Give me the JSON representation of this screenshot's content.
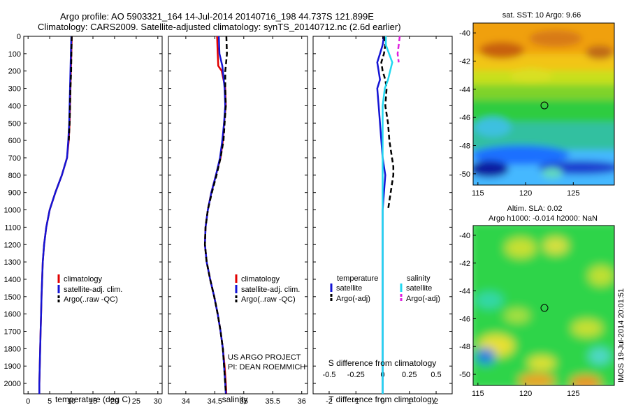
{
  "header": {
    "title_line1": "Argo profile: AO 5903321_164 14-Jul-2014 20140716_198 44.737S 121.899E",
    "title_line2": "Climatology: CARS2009. Satellite-adjusted climatology: synTS_20140712.nc (2.6d earlier)"
  },
  "colors": {
    "climatology": "#e00000",
    "satellite": "#1414d4",
    "argo": "#000000",
    "satellite_salinity": "#22d8f0",
    "argo_salinity": "#e020e0"
  },
  "footer": {
    "project": "US ARGO PROJECT",
    "pi": "PI: DEAN ROEMMICH",
    "stamp": "IMOS 19-Jul-2014 20:01:51"
  },
  "chart_data": [
    {
      "id": "temperature",
      "type": "line",
      "xlabel": "temperature (deg C)",
      "ylabel": "",
      "xlim": [
        -1,
        31
      ],
      "ylim": [
        2060,
        0
      ],
      "y_reversed": true,
      "xticks": [
        0,
        5,
        10,
        15,
        20,
        25,
        30
      ],
      "yticks": [
        0,
        100,
        200,
        300,
        400,
        500,
        600,
        700,
        800,
        900,
        1000,
        1100,
        1200,
        1300,
        1400,
        1500,
        1600,
        1700,
        1800,
        1900,
        2000
      ],
      "y": [
        0,
        100,
        200,
        300,
        400,
        500,
        600,
        700,
        800,
        900,
        1000,
        1100,
        1200,
        1300,
        1400,
        1500,
        1600,
        1700,
        1800,
        1900,
        2000,
        2060
      ],
      "series": [
        {
          "name": "climatology",
          "color_key": "climatology",
          "dash": false,
          "values": [
            10.1,
            10.0,
            9.9,
            9.8,
            9.7,
            9.6,
            9.4,
            9.0,
            7.8,
            6.3,
            5.0,
            4.2,
            3.7,
            3.4,
            3.25,
            3.1,
            3.0,
            2.9,
            2.8,
            2.7,
            2.6,
            2.6
          ]
        },
        {
          "name": "satellite-adj. clim.",
          "color_key": "satellite",
          "dash": false,
          "values": [
            10.0,
            9.9,
            9.8,
            9.7,
            9.6,
            9.5,
            9.3,
            9.0,
            7.8,
            6.3,
            5.0,
            4.2,
            3.7,
            3.4,
            3.25,
            3.1,
            3.0,
            2.9,
            2.8,
            2.7,
            2.6,
            2.6
          ]
        },
        {
          "name": "Argo(..raw -QC)",
          "color_key": "argo",
          "dash": true,
          "values": [
            10.1,
            10.0,
            9.95,
            9.8,
            9.7,
            9.6,
            9.4,
            null,
            null,
            null,
            null,
            null,
            null,
            null,
            null,
            null,
            null,
            null,
            null,
            null,
            null,
            null
          ]
        }
      ],
      "legend": [
        "climatology",
        "satellite-adj. clim.",
        "Argo(..raw -QC)"
      ],
      "legend_position": "lower-center"
    },
    {
      "id": "salinity",
      "type": "line",
      "xlabel": "salinity",
      "ylabel": "",
      "xlim": [
        33.7,
        36.1
      ],
      "ylim": [
        2060,
        0
      ],
      "y_reversed": true,
      "xticks": [
        34,
        34.5,
        35,
        35.5,
        36
      ],
      "y": [
        0,
        100,
        170,
        200,
        300,
        400,
        500,
        600,
        700,
        800,
        900,
        1000,
        1100,
        1200,
        1300,
        1400,
        1500,
        1600,
        1700,
        1800,
        1900,
        2000,
        2060
      ],
      "series": [
        {
          "name": "climatology",
          "color_key": "climatology",
          "dash": false,
          "values": [
            34.54,
            34.55,
            34.56,
            34.62,
            34.68,
            34.69,
            34.66,
            34.64,
            34.6,
            34.52,
            34.44,
            34.38,
            34.34,
            34.33,
            34.36,
            34.42,
            34.49,
            34.55,
            34.6,
            34.64,
            34.67,
            34.69,
            34.7
          ]
        },
        {
          "name": "satellite-adj. clim.",
          "color_key": "satellite",
          "dash": false,
          "values": [
            34.57,
            34.58,
            34.63,
            34.64,
            34.67,
            34.68,
            34.66,
            34.63,
            34.59,
            34.52,
            34.44,
            34.38,
            34.34,
            34.33,
            34.36,
            34.42,
            34.49,
            34.55,
            34.6,
            34.64,
            34.66,
            34.68,
            34.69
          ]
        },
        {
          "name": "Argo(..raw -QC)",
          "color_key": "argo",
          "dash": true,
          "values": [
            34.7,
            34.71,
            34.69,
            34.68,
            34.68,
            34.69,
            34.67,
            34.65,
            34.6,
            34.53,
            34.45,
            34.38,
            34.34,
            34.33,
            34.36,
            34.42,
            34.49,
            34.55,
            34.6,
            34.64,
            34.66,
            34.68,
            34.69
          ]
        }
      ],
      "legend": [
        "climatology",
        "satellite-adj. clim.",
        "Argo(..raw -QC)"
      ],
      "legend_position": "lower-center"
    },
    {
      "id": "difference",
      "type": "line",
      "xlabel": "T difference from climatology",
      "xlabel_top": "S difference from climatology",
      "xlim_T": [
        -2.6,
        2.6
      ],
      "xlim_S": [
        -0.65,
        0.65
      ],
      "ylim": [
        2060,
        0
      ],
      "y_reversed": true,
      "xticks": [
        -2,
        -1,
        0,
        1,
        2
      ],
      "xticks_top": [
        "-0.5",
        "-0.25",
        "0",
        "0.25",
        "0.5"
      ],
      "legend_header_T": "temperature",
      "legend_header_S": "salinity",
      "y": [
        0,
        50,
        100,
        150,
        200,
        250,
        300,
        400,
        500,
        600,
        700,
        750,
        800,
        900,
        1000,
        1200,
        1400,
        1600,
        1800,
        2000,
        2060
      ],
      "series": [
        {
          "name": "satellite",
          "group": "temperature",
          "color_key": "satellite",
          "dash": false,
          "values": [
            0.05,
            0.0,
            -0.1,
            -0.2,
            -0.15,
            -0.1,
            -0.2,
            -0.15,
            -0.1,
            -0.05,
            0.0,
            0.05,
            0.1,
            0.05,
            0.0,
            0.0,
            0.0,
            0.0,
            0.0,
            0.0,
            0.0
          ]
        },
        {
          "name": "Argo(-adj)",
          "group": "temperature",
          "color_key": "argo",
          "dash": true,
          "values": [
            0.05,
            0.1,
            0.05,
            -0.05,
            0.0,
            0.1,
            0.15,
            0.1,
            0.2,
            0.25,
            0.35,
            0.4,
            0.4,
            0.3,
            0.2,
            null,
            null,
            null,
            null,
            null,
            null
          ]
        },
        {
          "name": "satellite",
          "group": "salinity",
          "color_key": "satellite_salinity",
          "dash": false,
          "values": [
            0.03,
            0.03,
            0.06,
            0.09,
            0.07,
            0.05,
            0.02,
            0.0,
            0.0,
            0.0,
            0.0,
            0.0,
            0.0,
            0.0,
            0.0,
            0.0,
            0.0,
            0.0,
            0.0,
            0.0,
            0.0
          ]
        },
        {
          "name": "Argo(-adj)",
          "group": "salinity",
          "color_key": "argo_salinity",
          "dash": true,
          "values": [
            0.16,
            0.15,
            0.14,
            0.15,
            null,
            null,
            null,
            null,
            null,
            null,
            null,
            null,
            null,
            null,
            null,
            null,
            null,
            null,
            null,
            null,
            null
          ]
        }
      ],
      "legend": [
        "satellite",
        "Argo(-adj)",
        "satellite",
        "Argo(-adj)"
      ],
      "legend_position": "lower-center"
    },
    {
      "id": "sst_map",
      "type": "heatmap",
      "title": "sat. SST: 10 Argo: 9.66",
      "xticks": [
        115,
        120,
        125
      ],
      "yticks": [
        -40,
        -42,
        -44,
        -46,
        -48,
        -50
      ],
      "xlim": [
        114.5,
        129.3
      ],
      "ylim": [
        -50.8,
        -39.3
      ],
      "argo_position": [
        121.899,
        -44.737
      ]
    },
    {
      "id": "sla_map",
      "type": "heatmap",
      "title_line1": "Altim. SLA: 0.02",
      "title_line2": "Argo h1000: -0.014 h2000: NaN",
      "xticks": [
        115,
        120,
        125
      ],
      "yticks": [
        -40,
        -42,
        -44,
        -46,
        -48,
        -50
      ],
      "xlim": [
        114.5,
        129.3
      ],
      "ylim": [
        -50.8,
        -39.3
      ],
      "argo_position": [
        121.899,
        -44.737
      ]
    }
  ]
}
